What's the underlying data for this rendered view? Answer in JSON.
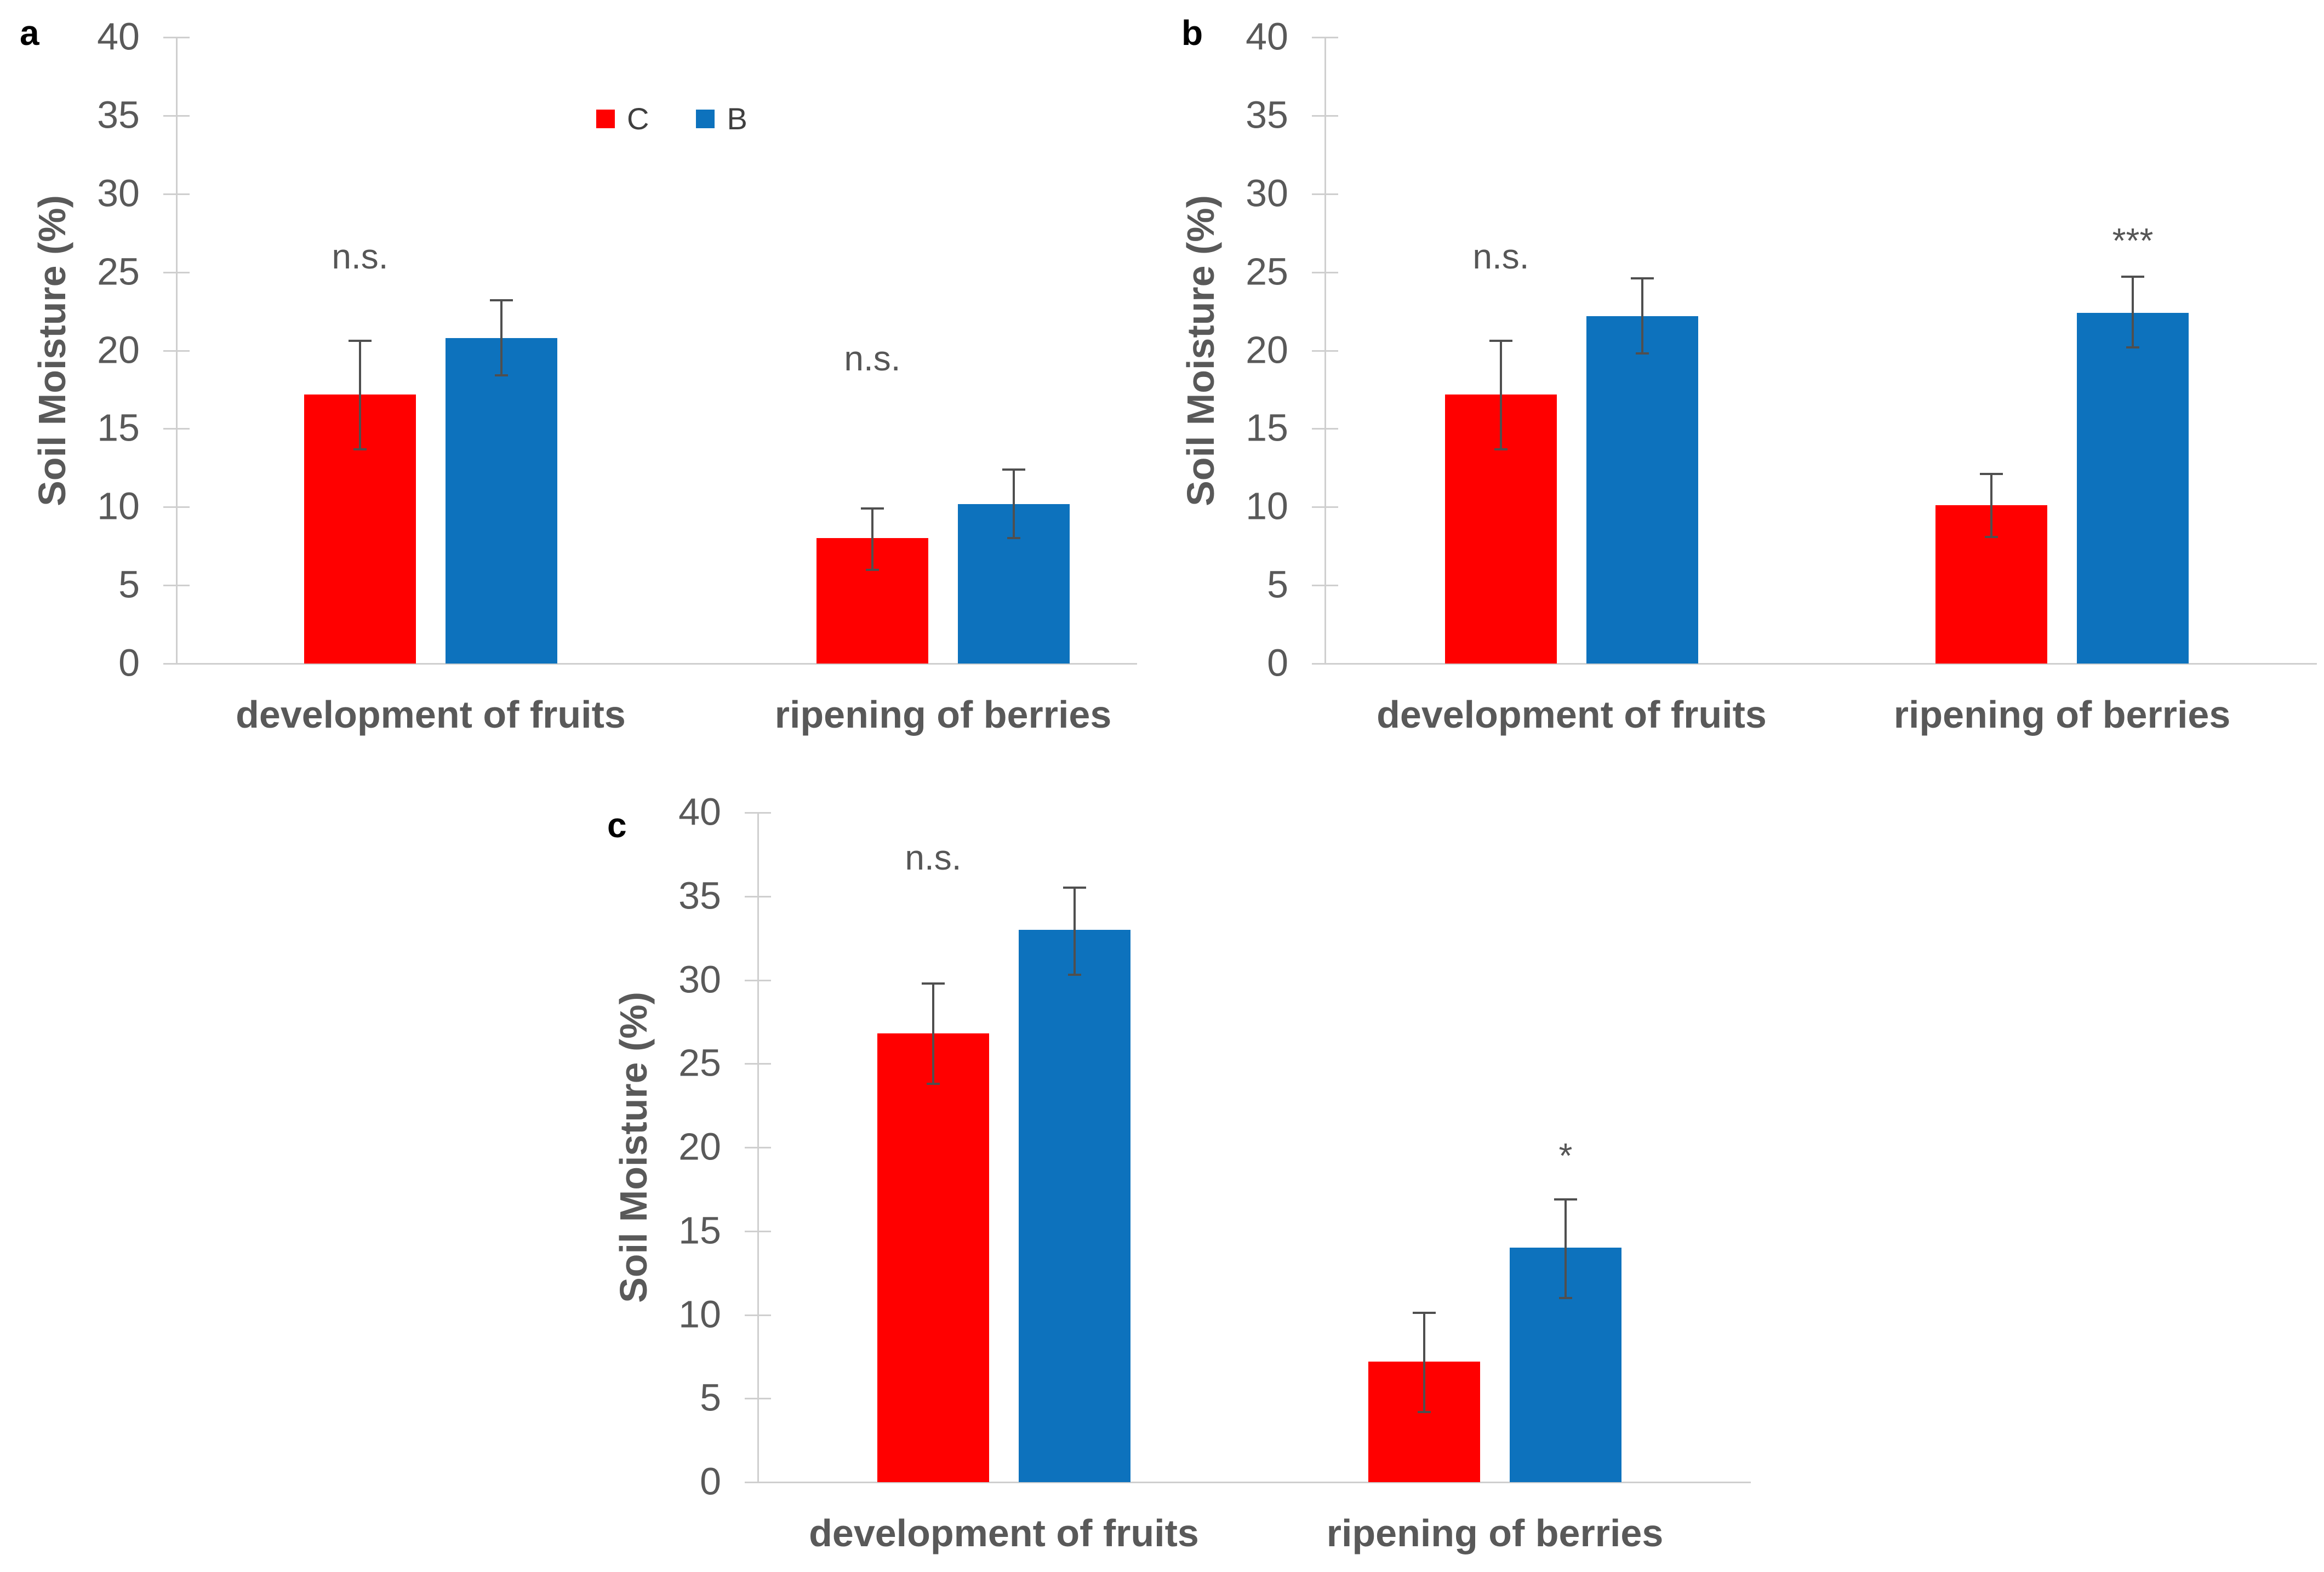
{
  "figure": {
    "background": "#ffffff",
    "axis_color": "#cfcfcf",
    "error_bar_color": "#4f4f4f",
    "text_color": "#595959"
  },
  "chart_data": [
    {
      "panel_label": "a",
      "type": "bar",
      "ylabel": "Soil Moisture (%)",
      "xlabel": "",
      "ylim": [
        0,
        40
      ],
      "yticks": [
        0,
        5,
        10,
        15,
        20,
        25,
        30,
        35,
        40
      ],
      "grid": false,
      "categories": [
        "development of fruits",
        "ripening of berries"
      ],
      "series": [
        {
          "name": "C",
          "color": "#FF0000",
          "values": [
            17.2,
            8.0
          ],
          "error_low": [
            13.7,
            6.0
          ],
          "error_high": [
            20.6,
            9.9
          ]
        },
        {
          "name": "B",
          "color": "#0D72BD",
          "values": [
            20.8,
            10.2
          ],
          "error_low": [
            18.4,
            8.0
          ],
          "error_high": [
            23.2,
            12.4
          ]
        }
      ],
      "annotations": [
        {
          "text": "n.s.",
          "category_index": 0,
          "over_series": "C",
          "y": 26
        },
        {
          "text": "n.s.",
          "category_index": 1,
          "over_series": "C",
          "y": 19.5
        }
      ],
      "legend": {
        "visible": true,
        "position": "top-center",
        "items": [
          {
            "label": "C",
            "color": "#FF0000"
          },
          {
            "label": "B",
            "color": "#0D72BD"
          }
        ]
      }
    },
    {
      "panel_label": "b",
      "type": "bar",
      "ylabel": "Soil Moisture (%)",
      "xlabel": "",
      "ylim": [
        0,
        40
      ],
      "yticks": [
        0,
        5,
        10,
        15,
        20,
        25,
        30,
        35,
        40
      ],
      "grid": false,
      "categories": [
        "development of fruits",
        "ripening of berries"
      ],
      "series": [
        {
          "name": "C",
          "color": "#FF0000",
          "values": [
            17.2,
            10.1
          ],
          "error_low": [
            13.7,
            8.1
          ],
          "error_high": [
            20.6,
            12.1
          ]
        },
        {
          "name": "B",
          "color": "#0D72BD",
          "values": [
            22.2,
            22.4
          ],
          "error_low": [
            19.8,
            20.2
          ],
          "error_high": [
            24.6,
            24.7
          ]
        }
      ],
      "annotations": [
        {
          "text": "n.s.",
          "category_index": 0,
          "over_series": "C",
          "y": 26
        },
        {
          "text": "***",
          "category_index": 1,
          "over_series": "B",
          "y": 27
        }
      ],
      "legend": {
        "visible": false,
        "items": []
      }
    },
    {
      "panel_label": "c",
      "type": "bar",
      "ylabel": "Soil Moisture (%)",
      "xlabel": "",
      "ylim": [
        0,
        40
      ],
      "yticks": [
        0,
        5,
        10,
        15,
        20,
        25,
        30,
        35,
        40
      ],
      "grid": false,
      "categories": [
        "development of fruits",
        "ripening of berries"
      ],
      "series": [
        {
          "name": "C",
          "color": "#FF0000",
          "values": [
            26.8,
            7.2
          ],
          "error_low": [
            23.8,
            4.2
          ],
          "error_high": [
            29.8,
            10.1
          ]
        },
        {
          "name": "B",
          "color": "#0D72BD",
          "values": [
            33.0,
            14.0
          ],
          "error_low": [
            30.3,
            11.0
          ],
          "error_high": [
            35.5,
            16.9
          ]
        }
      ],
      "annotations": [
        {
          "text": "n.s.",
          "category_index": 0,
          "over_series": "C",
          "y": 37.3
        },
        {
          "text": "*",
          "category_index": 1,
          "over_series": "B",
          "y": 19.5
        }
      ],
      "legend": {
        "visible": false,
        "items": []
      }
    }
  ]
}
